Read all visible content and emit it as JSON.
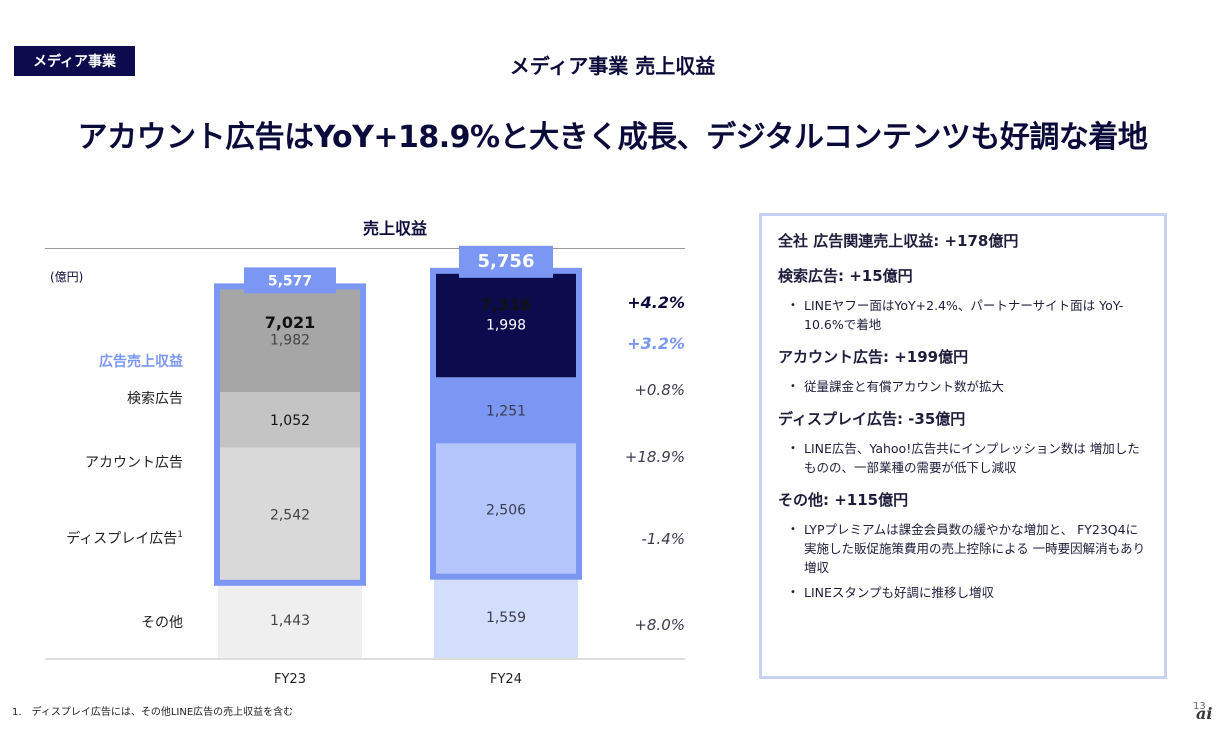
{
  "header": {
    "tag": "メディア事業",
    "title": "メディア事業 売上収益",
    "headline": "アカウント広告はYoY+18.9%と大きく成長、デジタルコンテンツも好調な着地"
  },
  "chart_data": {
    "type": "bar",
    "stacked": true,
    "title": "売上収益",
    "unit": "(億円)",
    "categories": [
      "FY23",
      "FY24"
    ],
    "series": [
      {
        "name": "検索広告",
        "values": [
          1982,
          1998
        ],
        "growth": "+0.8%"
      },
      {
        "name": "アカウント広告",
        "values": [
          1052,
          1251
        ],
        "growth": "+18.9%"
      },
      {
        "name": "ディスプレイ広告",
        "values": [
          2542,
          2506
        ],
        "growth": "-1.4%"
      },
      {
        "name": "その他",
        "values": [
          1443,
          1559
        ],
        "growth": "+8.0%"
      }
    ],
    "ad_revenue": {
      "name": "広告売上収益",
      "values": [
        5577,
        5756
      ],
      "growth": "+3.2%"
    },
    "totals": [
      7021,
      7316
    ],
    "total_growth": "+4.2%",
    "labels": {
      "totals": [
        "7,021",
        "7,316"
      ],
      "ad_revenue": [
        "5,577",
        "5,756"
      ],
      "search": [
        "1,982",
        "1,998"
      ],
      "account": [
        "1,052",
        "1,251"
      ],
      "display": [
        "2,542",
        "2,506"
      ],
      "other": [
        "1,443",
        "1,559"
      ]
    },
    "display_footnote_mark": "1",
    "colors": {
      "fy23": [
        "#a6a6a6",
        "#c4c4c4",
        "#d9d9d9",
        "#efefef"
      ],
      "fy24": [
        "#0b0b4d",
        "#7b97f3",
        "#b3c5fb",
        "#d3ddfc"
      ],
      "highlight": "#7b97f3",
      "growth": "#3b3b4f",
      "growth_ad": "#7b97f3"
    }
  },
  "panel": {
    "overall": "全社 広告関連売上収益: +178億円",
    "sections": [
      {
        "heading": "検索広告: +15億円",
        "bullets": [
          "LINEヤフー面はYoY+2.4%、パートナーサイト面は YoY-10.6%で着地"
        ]
      },
      {
        "heading": "アカウント広告: +199億円",
        "bullets": [
          "従量課金と有償アカウント数が拡大"
        ]
      },
      {
        "heading": "ディスプレイ広告: -35億円",
        "bullets": [
          "LINE広告、Yahoo!広告共にインプレッション数は 増加したものの、一部業種の需要が低下し減収"
        ]
      },
      {
        "heading": "その他: +115億円",
        "bullets": [
          "LYPプレミアムは課金会員数の緩やかな増加と、 FY23Q4に実施した販促施策費用の売上控除による 一時要因解消もあり増収",
          "LINEスタンプも好調に推移し増収"
        ]
      }
    ]
  },
  "footnote": "1.　ディスプレイ広告には、その他LINE広告の売上収益を含む",
  "page_number": "13",
  "logo": "ai"
}
